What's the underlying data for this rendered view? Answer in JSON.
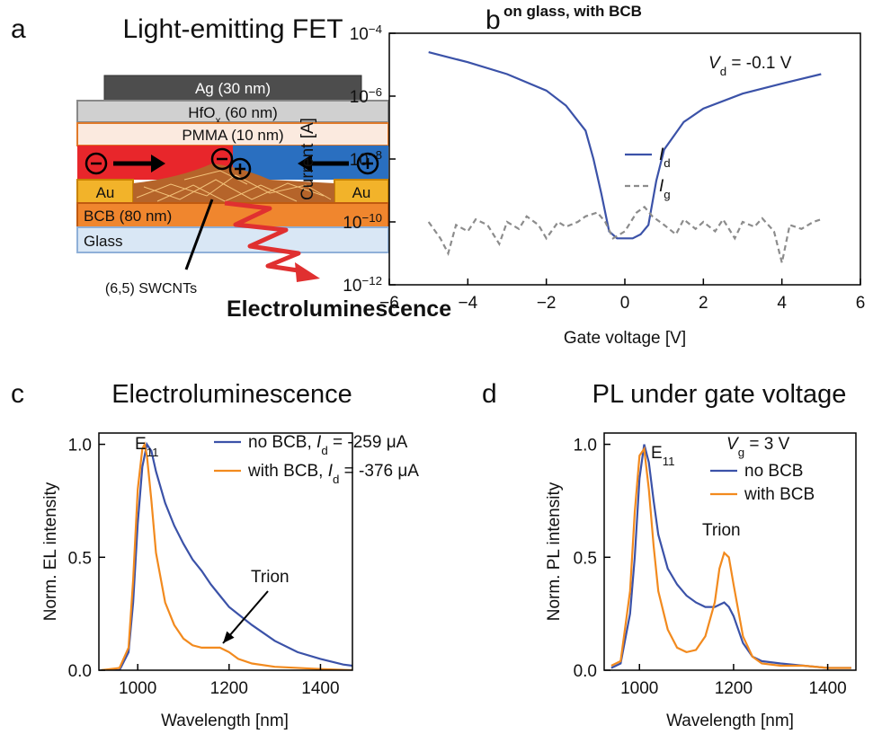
{
  "diagram": {
    "panel_label": "a",
    "title": "Light-emitting FET",
    "layers": {
      "ag": "Ag (30 nm)",
      "hfox": [
        {
          "text": "HfO"
        },
        {
          "text": "x",
          "style": "sub"
        },
        {
          "text": " (60 nm)"
        }
      ],
      "pmma": "PMMA (10 nm)",
      "au_left": "Au",
      "au_right": "Au",
      "bcb": "BCB (80 nm)",
      "glass": "Glass"
    },
    "nanotube_label": "(6,5) SWCNTs",
    "emission_label": "Electroluminescence"
  },
  "chart_data": [
    {
      "type": "line",
      "panel_label": "b",
      "title": "on glass, with BCB",
      "x_label": "Gate voltage [V]",
      "y_label": "Current [A]",
      "log_y": true,
      "xlim": [
        -6,
        6
      ],
      "ylim": [
        1e-12,
        0.0001
      ],
      "xticks": [
        {
          "value": -6,
          "label": "−6"
        },
        {
          "value": -4,
          "label": "−4"
        },
        {
          "value": -2,
          "label": "−2"
        },
        0,
        2,
        4,
        6
      ],
      "yticks": [
        {
          "value": 1e-12,
          "label": "10",
          "exponent": "−12"
        },
        {
          "value": 1e-10,
          "label": "10",
          "exponent": "−10"
        },
        {
          "value": 1e-08,
          "label": "10",
          "exponent": "−8"
        },
        {
          "value": 1e-06,
          "label": "10",
          "exponent": "−6"
        },
        {
          "value": 0.0001,
          "label": "10",
          "exponent": "−4"
        }
      ],
      "annotations": [
        {
          "parts": [
            {
              "text": "V",
              "style": "italic"
            },
            {
              "text": "d",
              "style": "sub"
            },
            {
              "text": " = -0.1 V"
            }
          ]
        }
      ],
      "series": [
        {
          "name": [
            {
              "text": "I",
              "style": "italic"
            },
            {
              "text": "d",
              "style": "sub"
            }
          ],
          "color": "#3b52a8",
          "dash": false,
          "x": [
            -5,
            -4,
            -3,
            -2,
            -1.5,
            -1,
            -0.8,
            -0.6,
            -0.4,
            -0.2,
            0,
            0.2,
            0.4,
            0.6,
            0.8,
            1,
            1.5,
            2,
            3,
            4,
            5
          ],
          "values": [
            2.5e-05,
            1.2e-05,
            5e-06,
            1.5e-06,
            5e-07,
            8e-08,
            1e-08,
            8e-10,
            5e-11,
            3e-11,
            3e-11,
            3e-11,
            4e-11,
            8e-11,
            2e-09,
            2e-08,
            1.5e-07,
            4e-07,
            1.2e-06,
            2.5e-06,
            5e-06
          ]
        },
        {
          "name": [
            {
              "text": "I",
              "style": "italic"
            },
            {
              "text": "g",
              "style": "sub"
            }
          ],
          "color": "#8c8c8c",
          "dash": true,
          "x": [
            -5,
            -4.7,
            -4.5,
            -4.3,
            -4,
            -3.8,
            -3.5,
            -3.2,
            -3,
            -2.7,
            -2.5,
            -2.2,
            -2,
            -1.7,
            -1.5,
            -1.2,
            -1,
            -0.7,
            -0.5,
            -0.3,
            0,
            0.3,
            0.5,
            0.7,
            1,
            1.3,
            1.5,
            1.8,
            2,
            2.3,
            2.5,
            2.8,
            3,
            3.3,
            3.5,
            3.8,
            4,
            4.2,
            4.5,
            4.8,
            5
          ],
          "values": [
            1e-10,
            3e-11,
            1e-11,
            8e-11,
            5e-11,
            1.2e-10,
            8e-11,
            2e-11,
            1e-10,
            6e-11,
            1.5e-10,
            8e-11,
            3e-11,
            1e-10,
            7e-11,
            1e-10,
            1.5e-10,
            2e-10,
            1e-10,
            3e-11,
            5e-11,
            2e-10,
            3e-10,
            1.5e-10,
            8e-11,
            4e-11,
            1.2e-10,
            6e-11,
            1e-10,
            5e-11,
            1.2e-10,
            3e-11,
            1e-10,
            7e-11,
            1.3e-10,
            5e-11,
            5e-12,
            8e-11,
            6e-11,
            1e-10,
            1.2e-10
          ]
        }
      ]
    },
    {
      "type": "line",
      "panel_label": "c",
      "title": "Electroluminescence",
      "x_label": "Wavelength [nm]",
      "y_label": "Norm. EL intensity",
      "log_y": false,
      "xlim": [
        915,
        1470
      ],
      "ylim": [
        0,
        1.05
      ],
      "xticks": [
        1000,
        1200,
        1400
      ],
      "yticks": [
        {
          "value": 0,
          "label": "0.0"
        },
        {
          "value": 0.5,
          "label": "0.5"
        },
        {
          "value": 1,
          "label": "1.0"
        }
      ],
      "annotations": [
        {
          "parts": [
            {
              "text": "E"
            },
            {
              "text": "11",
              "style": "sub"
            }
          ]
        },
        {
          "parts": [
            {
              "text": "Trion"
            }
          ]
        }
      ],
      "series": [
        {
          "name": [
            {
              "text": "no BCB, "
            },
            {
              "text": "I",
              "style": "italic"
            },
            {
              "text": "d",
              "style": "sub"
            },
            {
              "text": " = -259 μA"
            }
          ],
          "color": "#3b52a8",
          "dash": false,
          "x": [
            920,
            960,
            980,
            990,
            1000,
            1010,
            1020,
            1030,
            1040,
            1060,
            1080,
            1100,
            1120,
            1140,
            1160,
            1180,
            1200,
            1250,
            1300,
            1350,
            1400,
            1450,
            1470
          ],
          "values": [
            0,
            0,
            0.08,
            0.3,
            0.65,
            0.9,
            1.0,
            0.97,
            0.88,
            0.74,
            0.64,
            0.56,
            0.49,
            0.44,
            0.38,
            0.33,
            0.28,
            0.2,
            0.13,
            0.08,
            0.05,
            0.025,
            0.02
          ]
        },
        {
          "name": [
            {
              "text": "with BCB, "
            },
            {
              "text": "I",
              "style": "italic"
            },
            {
              "text": "d",
              "style": "sub"
            },
            {
              "text": " = -376 μA"
            }
          ],
          "color": "#f28a1e",
          "dash": false,
          "x": [
            920,
            960,
            980,
            990,
            1000,
            1010,
            1015,
            1020,
            1030,
            1040,
            1060,
            1080,
            1100,
            1120,
            1140,
            1160,
            1180,
            1200,
            1220,
            1250,
            1300,
            1400,
            1470
          ],
          "values": [
            0,
            0.01,
            0.1,
            0.4,
            0.8,
            0.98,
            1.0,
            0.95,
            0.75,
            0.52,
            0.3,
            0.2,
            0.14,
            0.11,
            0.1,
            0.1,
            0.1,
            0.08,
            0.05,
            0.03,
            0.015,
            0.005,
            0
          ]
        }
      ]
    },
    {
      "type": "line",
      "panel_label": "d",
      "title": "PL under gate voltage",
      "x_label": "Wavelength [nm]",
      "y_label": "Norm. PL intensity",
      "log_y": false,
      "xlim": [
        925,
        1460
      ],
      "ylim": [
        0,
        1.05
      ],
      "xticks": [
        1000,
        1200,
        1400
      ],
      "yticks": [
        {
          "value": 0,
          "label": "0.0"
        },
        {
          "value": 0.5,
          "label": "0.5"
        },
        {
          "value": 1,
          "label": "1.0"
        }
      ],
      "annotations": [
        {
          "parts": [
            {
              "text": "V",
              "style": "italic"
            },
            {
              "text": "g",
              "style": "sub"
            },
            {
              "text": " = 3 V"
            }
          ]
        },
        {
          "parts": [
            {
              "text": "E"
            },
            {
              "text": "11",
              "style": "sub"
            }
          ]
        },
        {
          "parts": [
            {
              "text": "Trion"
            }
          ]
        }
      ],
      "x": [
        940,
        960,
        980,
        990,
        1000,
        1010,
        1020,
        1030,
        1040,
        1060,
        1080,
        1100,
        1120,
        1140,
        1160,
        1170,
        1180,
        1190,
        1200,
        1220,
        1240,
        1260,
        1300,
        1350,
        1400,
        1450
      ],
      "series": [
        {
          "name": [
            {
              "text": "no BCB"
            }
          ],
          "color": "#3b52a8",
          "dash": false,
          "values": [
            0.01,
            0.03,
            0.25,
            0.5,
            0.85,
            1.0,
            0.92,
            0.75,
            0.6,
            0.45,
            0.38,
            0.33,
            0.3,
            0.28,
            0.28,
            0.29,
            0.3,
            0.28,
            0.24,
            0.12,
            0.06,
            0.04,
            0.03,
            0.02,
            0.01,
            0.01
          ]
        },
        {
          "name": [
            {
              "text": "with BCB"
            }
          ],
          "color": "#f28a1e",
          "dash": false,
          "values": [
            0.02,
            0.04,
            0.35,
            0.7,
            0.95,
            0.98,
            0.8,
            0.55,
            0.35,
            0.18,
            0.1,
            0.08,
            0.09,
            0.15,
            0.3,
            0.45,
            0.52,
            0.5,
            0.38,
            0.15,
            0.06,
            0.03,
            0.02,
            0.02,
            0.01,
            0.01
          ]
        }
      ]
    }
  ]
}
